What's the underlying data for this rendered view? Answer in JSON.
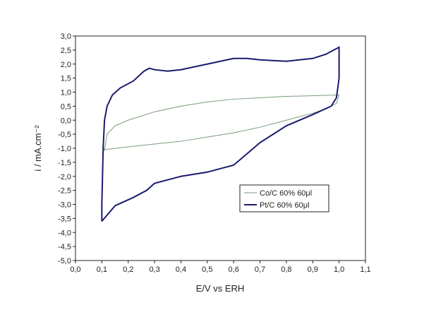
{
  "chart_data": {
    "type": "line",
    "xlabel": "E/V vs ERH",
    "ylabel": "i / mA.cm⁻²",
    "xlim": [
      0,
      1.1
    ],
    "ylim": [
      -5,
      3
    ],
    "xticks": [
      {
        "value": 0,
        "label": "0,0"
      },
      {
        "value": 0.1,
        "label": "0,1"
      },
      {
        "value": 0.2,
        "label": "0,2"
      },
      {
        "value": 0.3,
        "label": "0,3"
      },
      {
        "value": 0.4,
        "label": "0,4"
      },
      {
        "value": 0.5,
        "label": "0,5"
      },
      {
        "value": 0.6,
        "label": "0,6"
      },
      {
        "value": 0.7,
        "label": "0,7"
      },
      {
        "value": 0.8,
        "label": "0,8"
      },
      {
        "value": 0.9,
        "label": "0,9"
      },
      {
        "value": 1.0,
        "label": "1,0"
      },
      {
        "value": 1.1,
        "label": "1,1"
      }
    ],
    "yticks": [
      {
        "value": 3,
        "label": "3,0"
      },
      {
        "value": 2.5,
        "label": "2,5"
      },
      {
        "value": 2,
        "label": "2,0"
      },
      {
        "value": 1.5,
        "label": "1,5"
      },
      {
        "value": 1,
        "label": "1,0"
      },
      {
        "value": 0.5,
        "label": "0,5"
      },
      {
        "value": 0,
        "label": "0,0"
      },
      {
        "value": -0.5,
        "label": "-0,5"
      },
      {
        "value": -1,
        "label": "-1,0"
      },
      {
        "value": -1.5,
        "label": "-1,5"
      },
      {
        "value": -2,
        "label": "-2,0"
      },
      {
        "value": -2.5,
        "label": "-2,5"
      },
      {
        "value": -3,
        "label": "-3,0"
      },
      {
        "value": -3.5,
        "label": "-3,5"
      },
      {
        "value": -4,
        "label": "-4,0"
      },
      {
        "value": -4.5,
        "label": "-4,5"
      },
      {
        "value": -5,
        "label": "-5,0"
      }
    ],
    "legend": "lower right",
    "series": [
      {
        "name": "Co/C 60% 60μl",
        "color": "#7a9a7a",
        "x": [
          0.11,
          0.12,
          0.15,
          0.2,
          0.3,
          0.4,
          0.5,
          0.6,
          0.7,
          0.8,
          0.9,
          1.0,
          0.99,
          0.95,
          0.9,
          0.8,
          0.7,
          0.6,
          0.5,
          0.4,
          0.3,
          0.2,
          0.11,
          0.1,
          0.11
        ],
        "values": [
          -1.08,
          -0.5,
          -0.2,
          0.0,
          0.3,
          0.5,
          0.65,
          0.75,
          0.8,
          0.85,
          0.87,
          0.9,
          0.6,
          0.4,
          0.25,
          0.0,
          -0.25,
          -0.45,
          -0.6,
          -0.75,
          -0.85,
          -0.95,
          -1.05,
          -0.95,
          -1.08
        ]
      },
      {
        "name": "Pt/C 60% 60μl",
        "color": "#1a1a6e",
        "x": [
          0.1,
          0.1,
          0.105,
          0.11,
          0.12,
          0.14,
          0.17,
          0.22,
          0.26,
          0.28,
          0.3,
          0.35,
          0.4,
          0.5,
          0.6,
          0.65,
          0.7,
          0.8,
          0.9,
          0.95,
          1.0,
          1.0,
          0.99,
          0.97,
          0.9,
          0.8,
          0.75,
          0.7,
          0.65,
          0.6,
          0.5,
          0.4,
          0.3,
          0.27,
          0.22,
          0.15,
          0.1
        ],
        "values": [
          -3.6,
          -3.0,
          -1.0,
          0.0,
          0.5,
          0.9,
          1.15,
          1.4,
          1.75,
          1.85,
          1.8,
          1.75,
          1.8,
          2.0,
          2.2,
          2.2,
          2.15,
          2.1,
          2.2,
          2.35,
          2.6,
          1.5,
          0.8,
          0.5,
          0.2,
          -0.2,
          -0.5,
          -0.8,
          -1.2,
          -1.6,
          -1.85,
          -2.0,
          -2.25,
          -2.5,
          -2.75,
          -3.05,
          -3.6
        ]
      }
    ]
  }
}
